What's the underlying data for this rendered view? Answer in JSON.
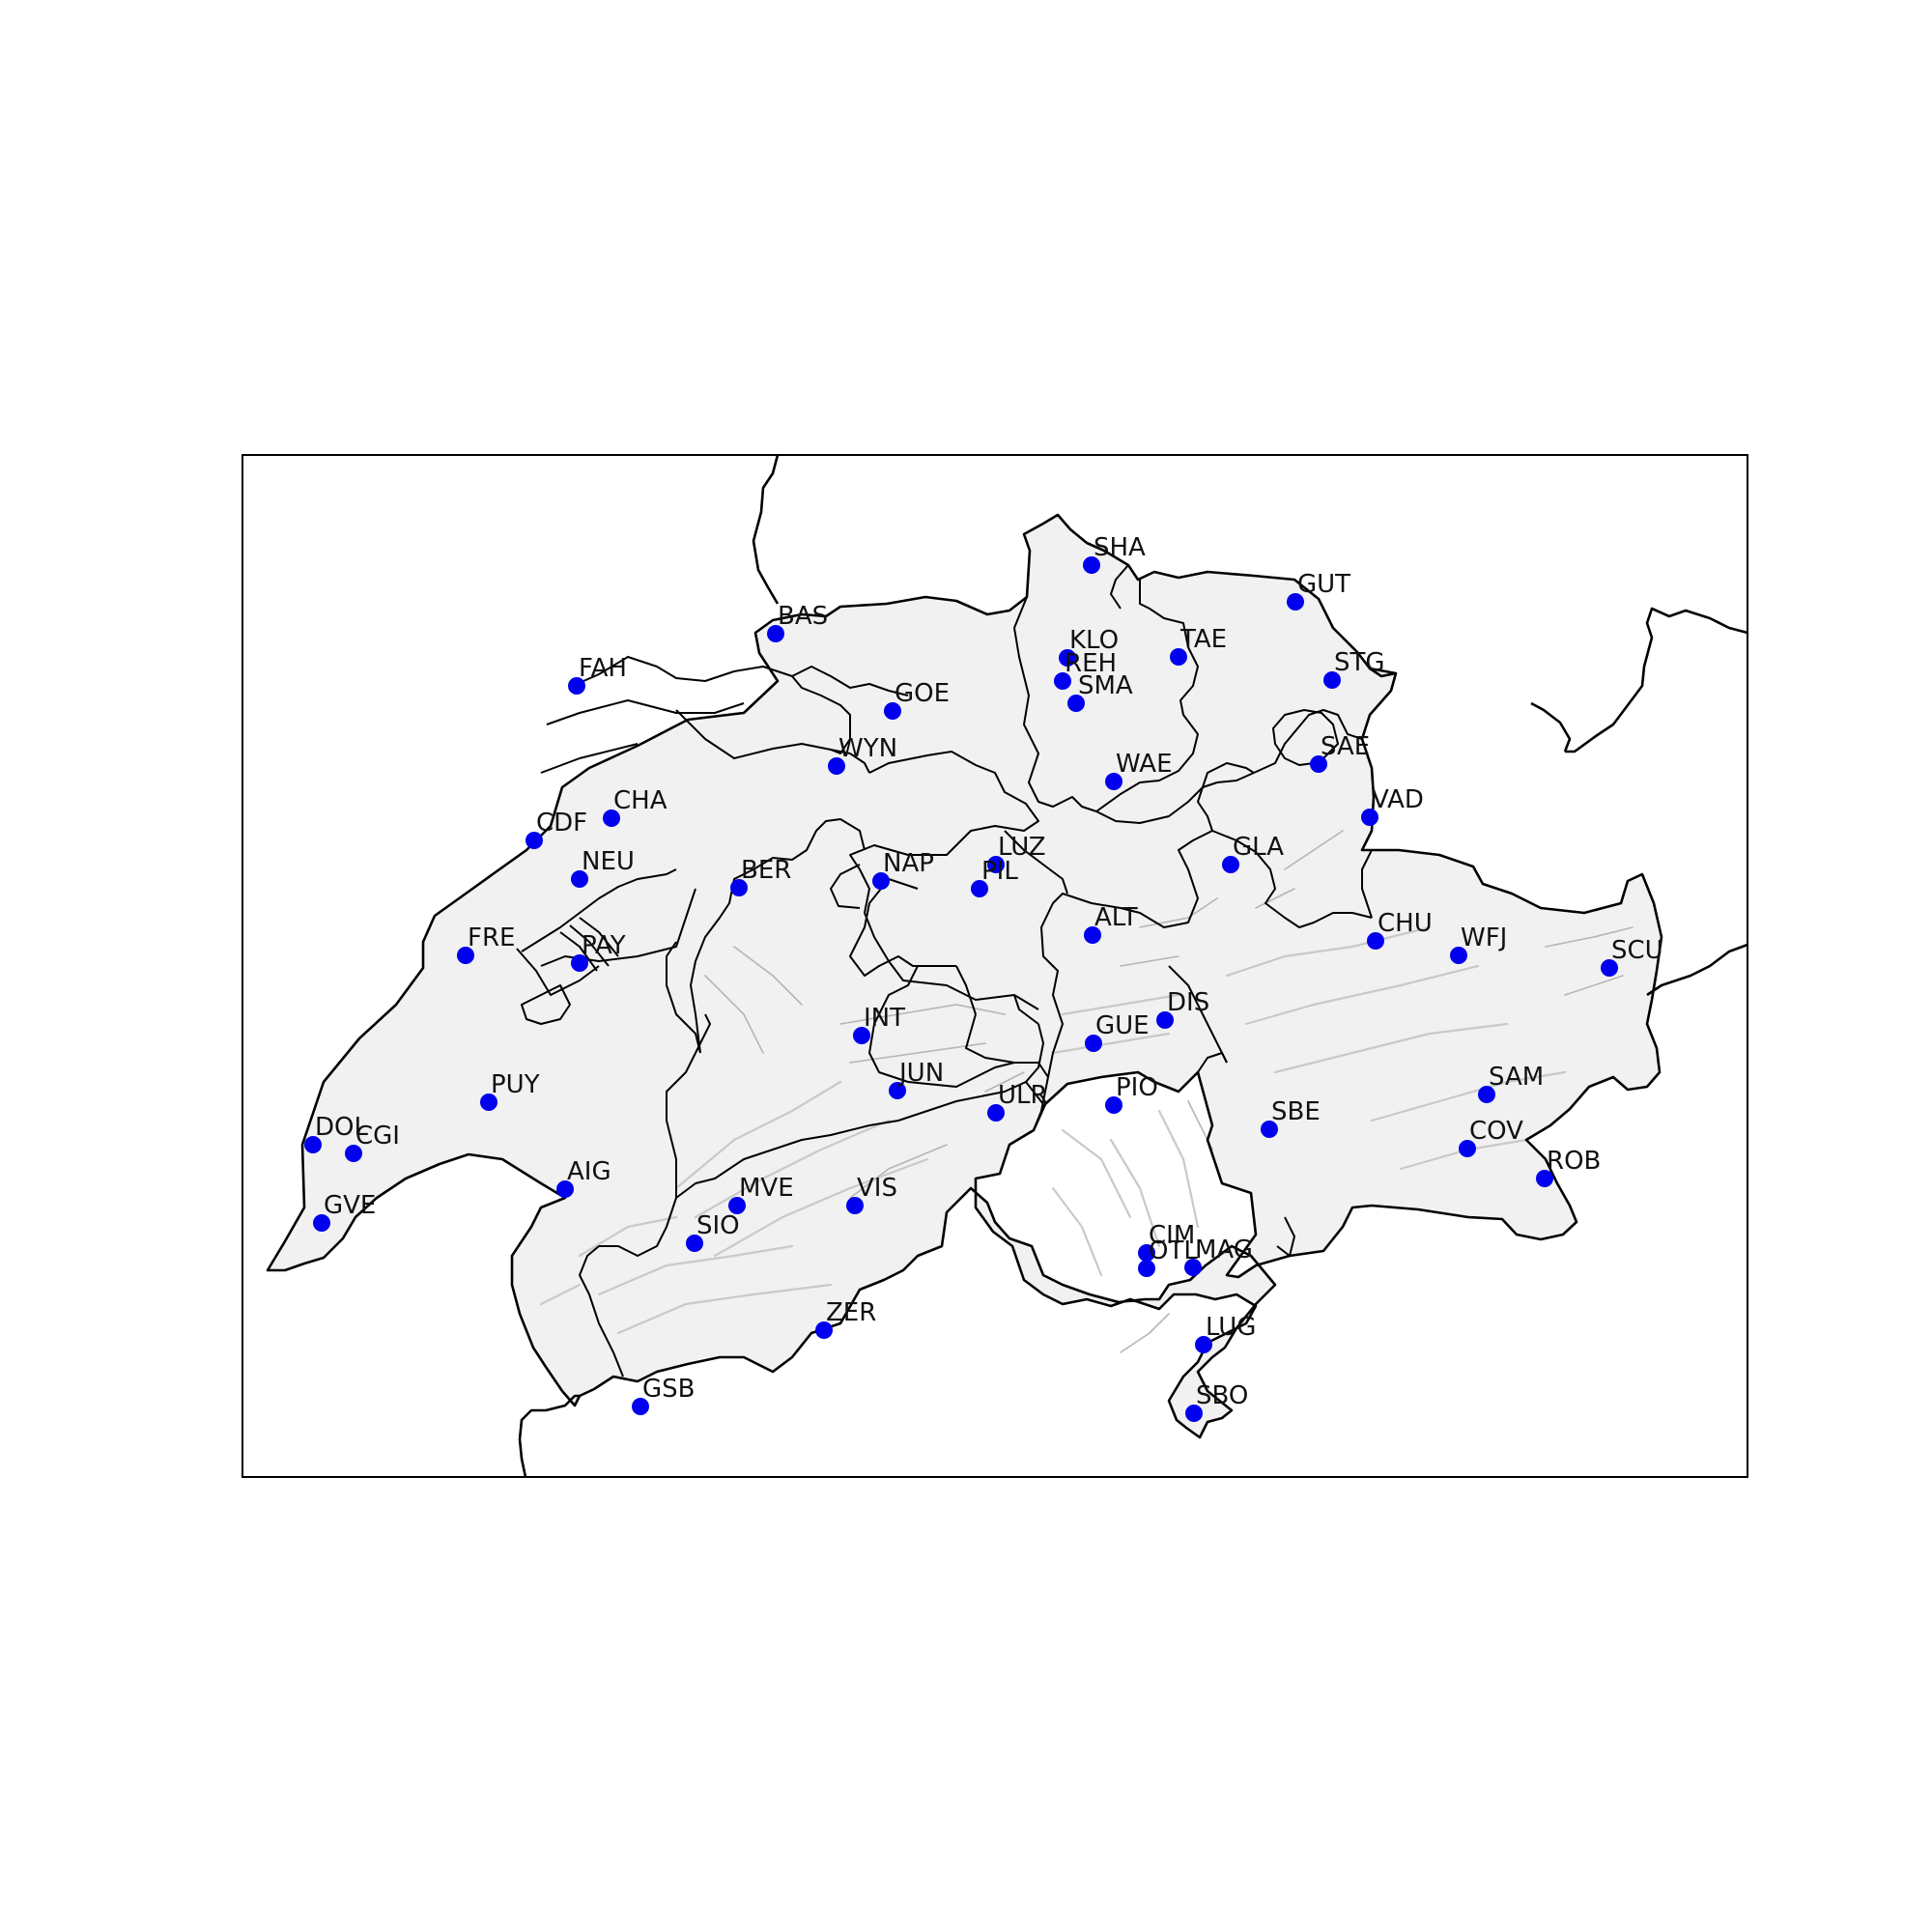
{
  "map": {
    "colors": {
      "station": "#0000ee",
      "border": "#000000",
      "land": "#f1f1f1",
      "relief": "#c9c9c9"
    },
    "stations": [
      {
        "code": "SHA"
      },
      {
        "code": "GUT"
      },
      {
        "code": "BAS"
      },
      {
        "code": "KLO"
      },
      {
        "code": "TAE"
      },
      {
        "code": "FAH"
      },
      {
        "code": "REH"
      },
      {
        "code": "SMA"
      },
      {
        "code": "STG"
      },
      {
        "code": "GOE"
      },
      {
        "code": "SAE"
      },
      {
        "code": "WYN"
      },
      {
        "code": "WAE"
      },
      {
        "code": "VAD"
      },
      {
        "code": "CHA"
      },
      {
        "code": "CDF"
      },
      {
        "code": "LUZ"
      },
      {
        "code": "GLA"
      },
      {
        "code": "NEU"
      },
      {
        "code": "BER"
      },
      {
        "code": "NAP"
      },
      {
        "code": "PIL"
      },
      {
        "code": "ALT"
      },
      {
        "code": "CHU"
      },
      {
        "code": "WFJ"
      },
      {
        "code": "FRE"
      },
      {
        "code": "PAY"
      },
      {
        "code": "SCU"
      },
      {
        "code": "DIS"
      },
      {
        "code": "INT"
      },
      {
        "code": "GUE"
      },
      {
        "code": "JUN"
      },
      {
        "code": "SAM"
      },
      {
        "code": "PUY"
      },
      {
        "code": "PIO"
      },
      {
        "code": "ULR"
      },
      {
        "code": "SBE"
      },
      {
        "code": "COV"
      },
      {
        "code": "DOL"
      },
      {
        "code": "CGI"
      },
      {
        "code": "ROB"
      },
      {
        "code": "AIG"
      },
      {
        "code": "MVE"
      },
      {
        "code": "VIS"
      },
      {
        "code": "GVE"
      },
      {
        "code": "SIO"
      },
      {
        "code": "CIM"
      },
      {
        "code": "OTL"
      },
      {
        "code": "MAG"
      },
      {
        "code": "ZER"
      },
      {
        "code": "LUG"
      },
      {
        "code": "GSB"
      },
      {
        "code": "SBO"
      }
    ]
  }
}
